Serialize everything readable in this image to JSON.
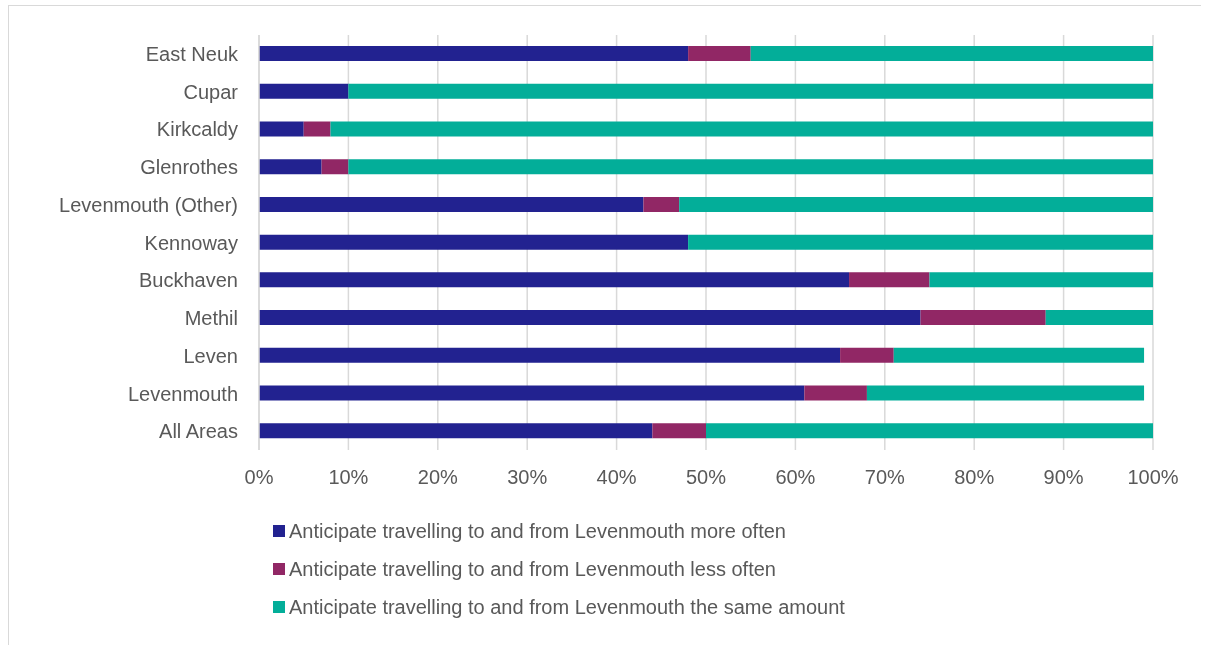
{
  "chart_data": {
    "type": "bar",
    "orientation": "horizontal",
    "stacked": true,
    "categories": [
      "East Neuk",
      "Cupar",
      "Kirkcaldy",
      "Glenrothes",
      "Levenmouth (Other)",
      "Kennoway",
      "Buckhaven",
      "Methil",
      "Leven",
      "Levenmouth",
      "All Areas"
    ],
    "series": [
      {
        "name": "Anticipate travelling to and from Levenmouth more often",
        "color": "#222290",
        "values": [
          48,
          10,
          5,
          7,
          43,
          48,
          66,
          74,
          65,
          61,
          44
        ]
      },
      {
        "name": "Anticipate travelling to and from Levenmouth less often",
        "color": "#912765",
        "values": [
          7,
          null,
          3,
          3,
          4,
          null,
          9,
          14,
          6,
          7,
          6
        ]
      },
      {
        "name": "Anticipate travelling to and from Levenmouth the same amount",
        "color": "#03ae99",
        "values": [
          45,
          90,
          92,
          90,
          53,
          52,
          25,
          12,
          28,
          31,
          50
        ]
      }
    ],
    "xlim": [
      0,
      100
    ],
    "xticks": [
      {
        "value": 0,
        "label": "0%"
      },
      {
        "value": 10,
        "label": "10%"
      },
      {
        "value": 20,
        "label": "20%"
      },
      {
        "value": 30,
        "label": "30%"
      },
      {
        "value": 40,
        "label": "40%"
      },
      {
        "value": 50,
        "label": "50%"
      },
      {
        "value": 60,
        "label": "60%"
      },
      {
        "value": 70,
        "label": "70%"
      },
      {
        "value": 80,
        "label": "80%"
      },
      {
        "value": 90,
        "label": "90%"
      },
      {
        "value": 100,
        "label": "100%"
      }
    ],
    "grid": "x",
    "legend": "bottom"
  }
}
